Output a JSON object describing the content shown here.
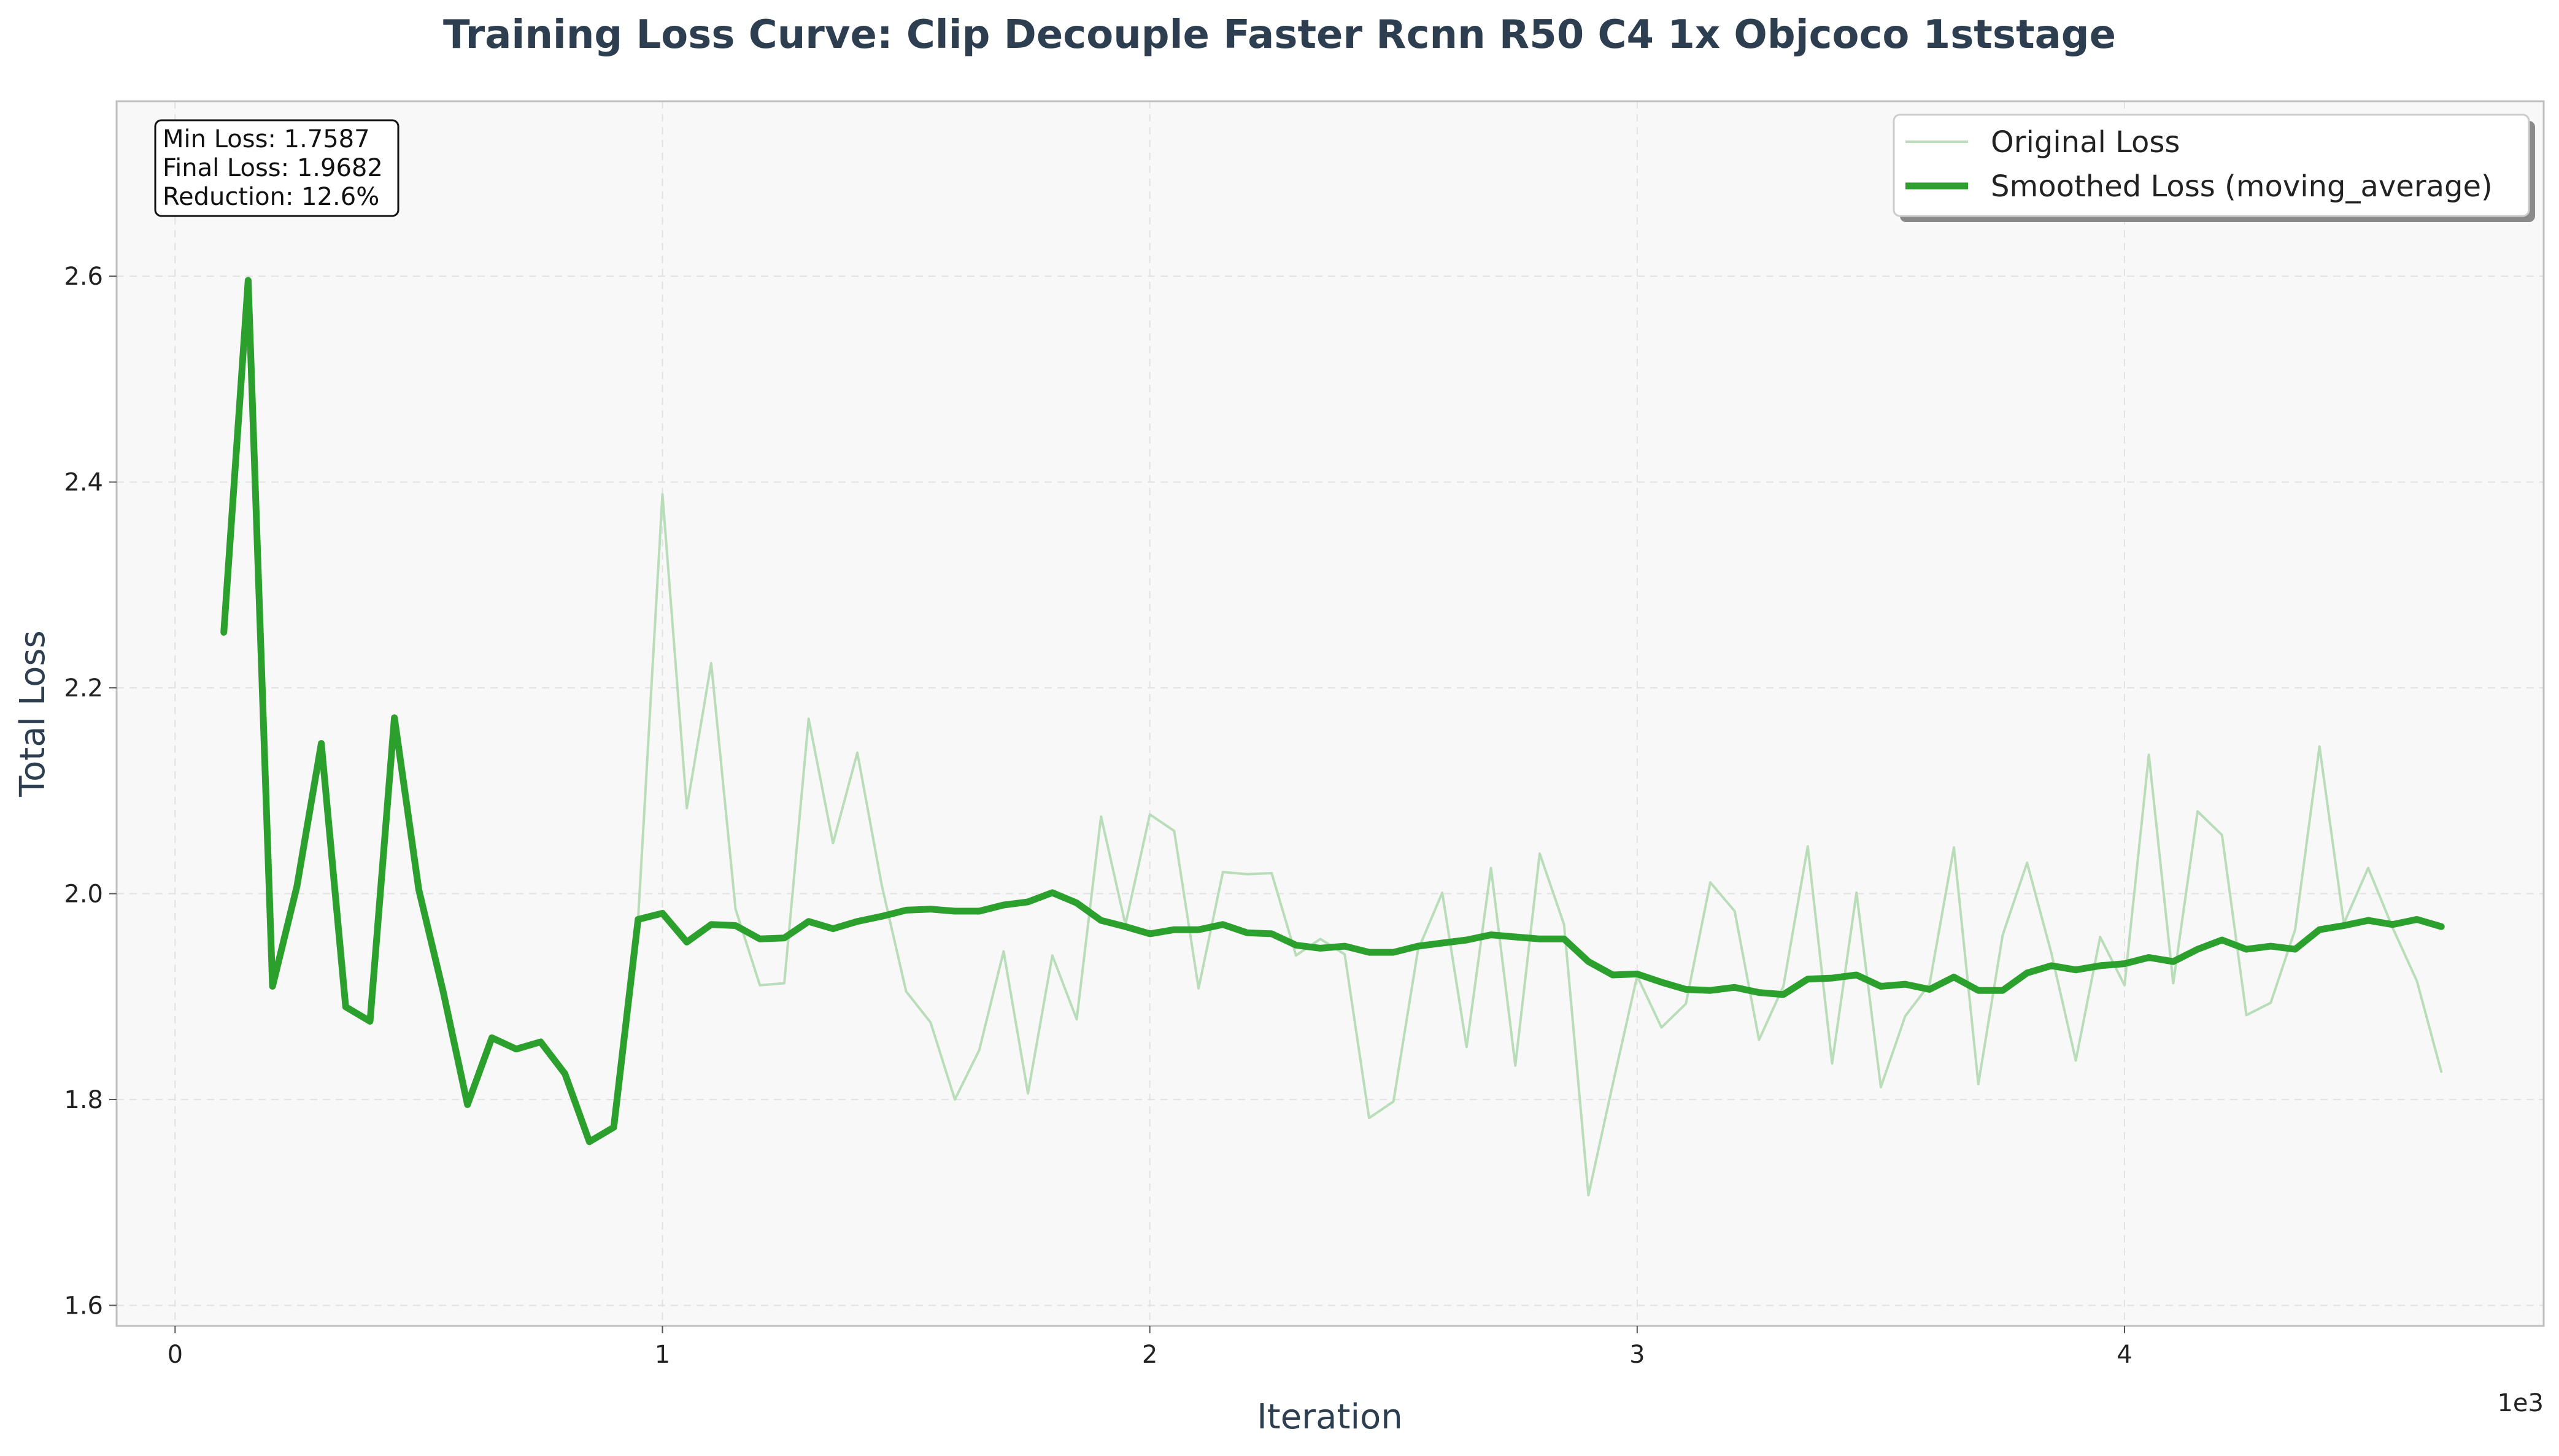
{
  "chart_data": {
    "type": "line",
    "title": "Training Loss Curve: Clip Decouple Faster Rcnn R50 C4 1x Objcoco 1ststage",
    "xlabel": "Iteration",
    "ylabel": "Total Loss",
    "x_offset_label": "1e3",
    "xlim": [
      -120,
      4860
    ],
    "ylim": [
      1.58,
      2.77
    ],
    "x_ticks": [
      0,
      1000,
      2000,
      3000,
      4000
    ],
    "x_tick_labels": [
      "0",
      "1",
      "2",
      "3",
      "4"
    ],
    "y_ticks": [
      1.6,
      1.8,
      2.0,
      2.2,
      2.4,
      2.6
    ],
    "y_tick_labels": [
      "1.6",
      "1.8",
      "2.0",
      "2.2",
      "2.4",
      "2.6"
    ],
    "grid": true,
    "legend_placement": "top-right",
    "stats_box": {
      "lines": [
        "Min Loss: 1.7587",
        "Final Loss: 1.9682",
        "Reduction: 12.6%"
      ]
    },
    "colors": {
      "smoothed": "#2ca02c",
      "original": "#b9ddb9",
      "plot_bg": "#f8f8f8",
      "title": "#2c3e50"
    },
    "series": [
      {
        "name": "Original Loss",
        "x": [
          100,
          150,
          200,
          250,
          300,
          350,
          400,
          450,
          500,
          550,
          600,
          650,
          700,
          750,
          800,
          850,
          900,
          950,
          1000,
          1050,
          1100,
          1150,
          1200,
          1250,
          1300,
          1350,
          1400,
          1450,
          1500,
          1550,
          1600,
          1650,
          1700,
          1750,
          1800,
          1850,
          1900,
          1950,
          2000,
          2050,
          2100,
          2150,
          2200,
          2250,
          2300,
          2350,
          2400,
          2450,
          2500,
          2550,
          2600,
          2650,
          2700,
          2750,
          2800,
          2850,
          2900,
          2950,
          3000,
          3050,
          3100,
          3150,
          3200,
          3250,
          3300,
          3350,
          3400,
          3450,
          3500,
          3550,
          3600,
          3650,
          3700,
          3750,
          3800,
          3850,
          3900,
          3950,
          4000,
          4050,
          4100,
          4150,
          4200,
          4250,
          4300,
          4350,
          4400,
          4450,
          4500,
          4550,
          4600,
          4650
        ],
        "y": [
          2.254,
          2.596,
          1.91,
          2.007,
          2.146,
          1.89,
          1.876,
          2.171,
          2.004,
          1.905,
          1.795,
          1.86,
          1.849,
          1.856,
          1.825,
          1.759,
          1.773,
          1.975,
          2.388,
          2.083,
          2.224,
          1.985,
          1.911,
          1.913,
          2.17,
          2.049,
          2.137,
          2.008,
          1.905,
          1.875,
          1.8,
          1.848,
          1.944,
          1.806,
          1.94,
          1.878,
          2.075,
          1.97,
          2.077,
          2.061,
          1.908,
          2.021,
          2.019,
          2.02,
          1.94,
          1.956,
          1.941,
          1.782,
          1.798,
          1.945,
          2.001,
          1.851,
          2.025,
          1.833,
          2.039,
          1.97,
          1.707,
          1.815,
          1.92,
          1.87,
          1.893,
          2.011,
          1.983,
          1.858,
          1.91,
          2.046,
          1.835,
          2.001,
          1.812,
          1.881,
          1.912,
          2.045,
          1.815,
          1.96,
          2.03,
          1.942,
          1.838,
          1.958,
          1.911,
          2.135,
          1.913,
          2.08,
          2.057,
          1.882,
          1.894,
          1.965,
          2.143,
          1.971,
          2.025,
          1.967,
          1.915,
          1.827
        ]
      },
      {
        "name": "Smoothed Loss (moving_average)",
        "x": [
          100,
          150,
          200,
          250,
          300,
          350,
          400,
          450,
          500,
          550,
          600,
          650,
          700,
          750,
          800,
          850,
          900,
          950,
          1000,
          1050,
          1100,
          1150,
          1200,
          1250,
          1300,
          1350,
          1400,
          1450,
          1500,
          1550,
          1600,
          1650,
          1700,
          1750,
          1800,
          1850,
          1900,
          1950,
          2000,
          2050,
          2100,
          2150,
          2200,
          2250,
          2300,
          2350,
          2400,
          2450,
          2500,
          2550,
          2600,
          2650,
          2700,
          2750,
          2800,
          2850,
          2900,
          2950,
          3000,
          3050,
          3100,
          3150,
          3200,
          3250,
          3300,
          3350,
          3400,
          3450,
          3500,
          3550,
          3600,
          3650,
          3700,
          3750,
          3800,
          3850,
          3900,
          3950,
          4000,
          4050,
          4100,
          4150,
          4200,
          4250,
          4300,
          4350,
          4400,
          4450,
          4500,
          4550,
          4600,
          4650
        ],
        "y": [
          2.254,
          2.596,
          1.91,
          2.007,
          2.146,
          1.89,
          1.876,
          2.171,
          2.004,
          1.905,
          1.795,
          1.86,
          1.849,
          1.856,
          1.825,
          1.759,
          1.773,
          1.975,
          1.981,
          1.953,
          1.97,
          1.969,
          1.956,
          1.957,
          1.973,
          1.966,
          1.973,
          1.978,
          1.984,
          1.985,
          1.983,
          1.983,
          1.989,
          1.992,
          2.001,
          1.991,
          1.974,
          1.968,
          1.961,
          1.965,
          1.965,
          1.97,
          1.962,
          1.961,
          1.95,
          1.947,
          1.949,
          1.943,
          1.943,
          1.949,
          1.952,
          1.955,
          1.96,
          1.958,
          1.956,
          1.956,
          1.934,
          1.921,
          1.922,
          1.914,
          1.907,
          1.906,
          1.909,
          1.904,
          1.902,
          1.917,
          1.918,
          1.921,
          1.91,
          1.912,
          1.907,
          1.919,
          1.906,
          1.906,
          1.923,
          1.93,
          1.926,
          1.93,
          1.932,
          1.938,
          1.934,
          1.946,
          1.955,
          1.946,
          1.949,
          1.946,
          1.965,
          1.969,
          1.974,
          1.97,
          1.975,
          1.968
        ]
      }
    ]
  }
}
